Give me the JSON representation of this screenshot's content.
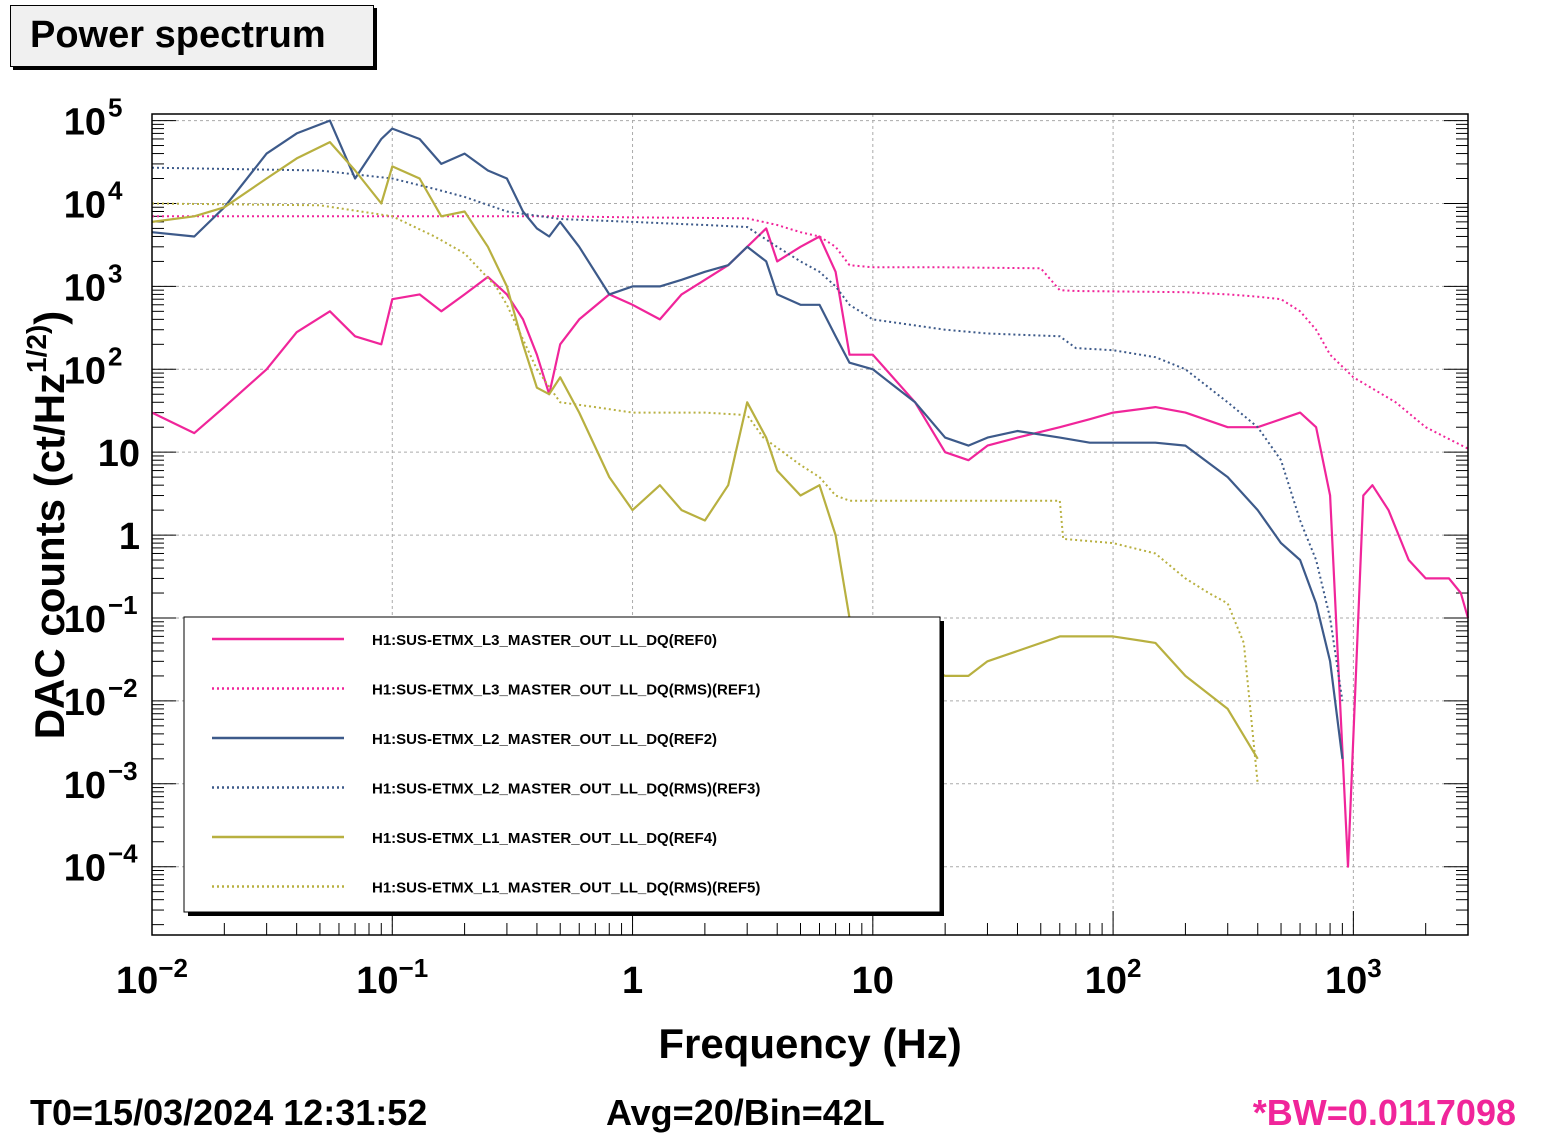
{
  "title": "Power spectrum",
  "footer": {
    "t0": "T0=15/03/2024 12:31:52",
    "avg": "Avg=20/Bin=42L",
    "bw": "*BW=0.0117098",
    "bw_color": "#f0259a"
  },
  "chart_data": {
    "type": "line",
    "title": "Power spectrum",
    "xlabel": "Frequency (Hz)",
    "ylabel": "DAC counts (ct/Hz^1/2)",
    "xscale": "log",
    "yscale": "log",
    "xlim": [
      0.01,
      3000
    ],
    "ylim": [
      1.5e-05,
      120000
    ],
    "grid": true,
    "legend_position": "bottom-left",
    "x_ticks": [
      {
        "value": 0.01,
        "base": "10",
        "exp": "−2"
      },
      {
        "value": 0.1,
        "base": "10",
        "exp": "−1"
      },
      {
        "value": 1,
        "base": "1",
        "exp": ""
      },
      {
        "value": 10,
        "base": "10",
        "exp": ""
      },
      {
        "value": 100,
        "base": "10",
        "exp": "2"
      },
      {
        "value": 1000,
        "base": "10",
        "exp": "3"
      }
    ],
    "y_ticks": [
      {
        "value": 100000,
        "base": "10",
        "exp": "5"
      },
      {
        "value": 10000,
        "base": "10",
        "exp": "4"
      },
      {
        "value": 1000,
        "base": "10",
        "exp": "3"
      },
      {
        "value": 100,
        "base": "10",
        "exp": "2"
      },
      {
        "value": 10,
        "base": "10",
        "exp": ""
      },
      {
        "value": 1,
        "base": "1",
        "exp": ""
      },
      {
        "value": 0.1,
        "base": "10",
        "exp": "−1"
      },
      {
        "value": 0.01,
        "base": "10",
        "exp": "−2"
      },
      {
        "value": 0.001,
        "base": "10",
        "exp": "−3"
      },
      {
        "value": 0.0001,
        "base": "10",
        "exp": "−4"
      }
    ],
    "series": [
      {
        "name": "H1:SUS-ETMX_L3_MASTER_OUT_LL_DQ(REF0)",
        "color": "#f0259a",
        "style": "solid",
        "x": [
          0.01,
          0.015,
          0.02,
          0.03,
          0.04,
          0.055,
          0.07,
          0.09,
          0.1,
          0.13,
          0.16,
          0.2,
          0.25,
          0.3,
          0.35,
          0.4,
          0.45,
          0.5,
          0.6,
          0.8,
          1.0,
          1.3,
          1.6,
          2.0,
          2.5,
          3.0,
          3.6,
          4.0,
          5.0,
          6.0,
          7.0,
          8.0,
          10,
          15,
          20,
          25,
          30,
          40,
          60,
          80,
          100,
          150,
          200,
          300,
          400,
          500,
          600,
          700,
          800,
          950,
          1100,
          1200,
          1400,
          1700,
          2000,
          2500,
          2800,
          3000
        ],
        "y": [
          30,
          17,
          35,
          100,
          280,
          500,
          250,
          200,
          700,
          800,
          500,
          800,
          1300,
          800,
          400,
          150,
          50,
          200,
          400,
          800,
          600,
          400,
          800,
          1200,
          1800,
          3000,
          5000,
          2000,
          3000,
          4000,
          1500,
          150,
          150,
          40,
          10,
          8,
          12,
          15,
          20,
          25,
          30,
          35,
          30,
          20,
          20,
          25,
          30,
          20,
          3,
          0.0001,
          3,
          4,
          2,
          0.5,
          0.3,
          0.3,
          0.2,
          0.1
        ]
      },
      {
        "name": "H1:SUS-ETMX_L3_MASTER_OUT_LL_DQ(RMS)(REF1)",
        "color": "#f0259a",
        "style": "dotted",
        "x": [
          0.01,
          0.05,
          0.1,
          0.5,
          1,
          2,
          3,
          4,
          5,
          6,
          7,
          8,
          10,
          20,
          50,
          60,
          70,
          100,
          200,
          300,
          400,
          500,
          600,
          700,
          800,
          1000,
          1500,
          2000,
          3000
        ],
        "y": [
          7000,
          7000,
          7000,
          7000,
          6800,
          6700,
          6600,
          5500,
          4500,
          4000,
          3000,
          1800,
          1700,
          1700,
          1650,
          900,
          880,
          870,
          850,
          800,
          750,
          700,
          500,
          300,
          150,
          80,
          40,
          20,
          11
        ]
      },
      {
        "name": "H1:SUS-ETMX_L2_MASTER_OUT_LL_DQ(REF2)",
        "color": "#3d5a8a",
        "style": "solid",
        "x": [
          0.01,
          0.015,
          0.02,
          0.03,
          0.04,
          0.055,
          0.07,
          0.09,
          0.1,
          0.13,
          0.16,
          0.2,
          0.25,
          0.3,
          0.35,
          0.4,
          0.45,
          0.5,
          0.6,
          0.8,
          1.0,
          1.3,
          1.6,
          2.0,
          2.5,
          3.0,
          3.6,
          4.0,
          5.0,
          6.0,
          7.0,
          8.0,
          10,
          15,
          20,
          25,
          30,
          40,
          60,
          80,
          100,
          150,
          200,
          300,
          400,
          500,
          600,
          700,
          800,
          900
        ],
        "y": [
          4500,
          4000,
          9000,
          40000,
          70000,
          100000,
          20000,
          60000,
          80000,
          60000,
          30000,
          40000,
          25000,
          20000,
          8000,
          5000,
          4000,
          6000,
          3000,
          800,
          1000,
          1000,
          1200,
          1500,
          1800,
          3000,
          2000,
          800,
          600,
          600,
          250,
          120,
          100,
          40,
          15,
          12,
          15,
          18,
          15,
          13,
          13,
          13,
          12,
          5,
          2,
          0.8,
          0.5,
          0.15,
          0.03,
          0.002
        ]
      },
      {
        "name": "H1:SUS-ETMX_L2_MASTER_OUT_LL_DQ(RMS)(REF3)",
        "color": "#3d5a8a",
        "style": "dotted",
        "x": [
          0.01,
          0.05,
          0.1,
          0.15,
          0.2,
          0.3,
          0.5,
          1,
          2,
          3,
          4,
          5,
          6,
          7,
          8,
          10,
          20,
          30,
          60,
          70,
          100,
          150,
          200,
          300,
          400,
          500,
          600,
          700,
          800,
          900
        ],
        "y": [
          27000,
          25000,
          20000,
          15000,
          12000,
          8000,
          6500,
          6000,
          5500,
          5200,
          3000,
          2000,
          1500,
          1000,
          600,
          400,
          300,
          270,
          250,
          180,
          170,
          140,
          100,
          40,
          20,
          8,
          1.5,
          0.5,
          0.1,
          0.01
        ]
      },
      {
        "name": "H1:SUS-ETMX_L1_MASTER_OUT_LL_DQ(REF4)",
        "color": "#b8b040",
        "style": "solid",
        "x": [
          0.01,
          0.015,
          0.02,
          0.03,
          0.04,
          0.055,
          0.07,
          0.09,
          0.1,
          0.13,
          0.16,
          0.2,
          0.25,
          0.3,
          0.35,
          0.4,
          0.45,
          0.5,
          0.6,
          0.8,
          1.0,
          1.3,
          1.6,
          2.0,
          2.5,
          3.0,
          3.6,
          4.0,
          5.0,
          6.0,
          7.0,
          8.0,
          10,
          15,
          20,
          25,
          30,
          40,
          60,
          80,
          100,
          150,
          200,
          300,
          400
        ],
        "y": [
          6000,
          7000,
          9000,
          20000,
          35000,
          55000,
          25000,
          10000,
          28000,
          20000,
          7000,
          8000,
          3000,
          1000,
          200,
          60,
          50,
          80,
          30,
          5,
          2,
          4,
          2,
          1.5,
          4,
          40,
          15,
          6,
          3,
          4,
          1,
          0.1,
          0.05,
          0.03,
          0.02,
          0.02,
          0.03,
          0.04,
          0.06,
          0.06,
          0.06,
          0.05,
          0.02,
          0.008,
          0.002
        ]
      },
      {
        "name": "H1:SUS-ETMX_L1_MASTER_OUT_LL_DQ(RMS)(REF5)",
        "color": "#b8b040",
        "style": "dotted",
        "x": [
          0.01,
          0.05,
          0.1,
          0.15,
          0.2,
          0.27,
          0.3,
          0.4,
          0.5,
          0.7,
          1,
          2,
          3,
          3.5,
          5,
          6,
          7,
          8,
          10,
          20,
          60,
          62,
          100,
          150,
          200,
          250,
          300,
          350,
          400
        ],
        "y": [
          10000,
          9500,
          7000,
          4000,
          2500,
          1000,
          600,
          100,
          40,
          35,
          30,
          30,
          28,
          15,
          7,
          5,
          3,
          2.6,
          2.6,
          2.6,
          2.6,
          0.9,
          0.8,
          0.6,
          0.3,
          0.2,
          0.15,
          0.05,
          0.001
        ]
      }
    ]
  }
}
